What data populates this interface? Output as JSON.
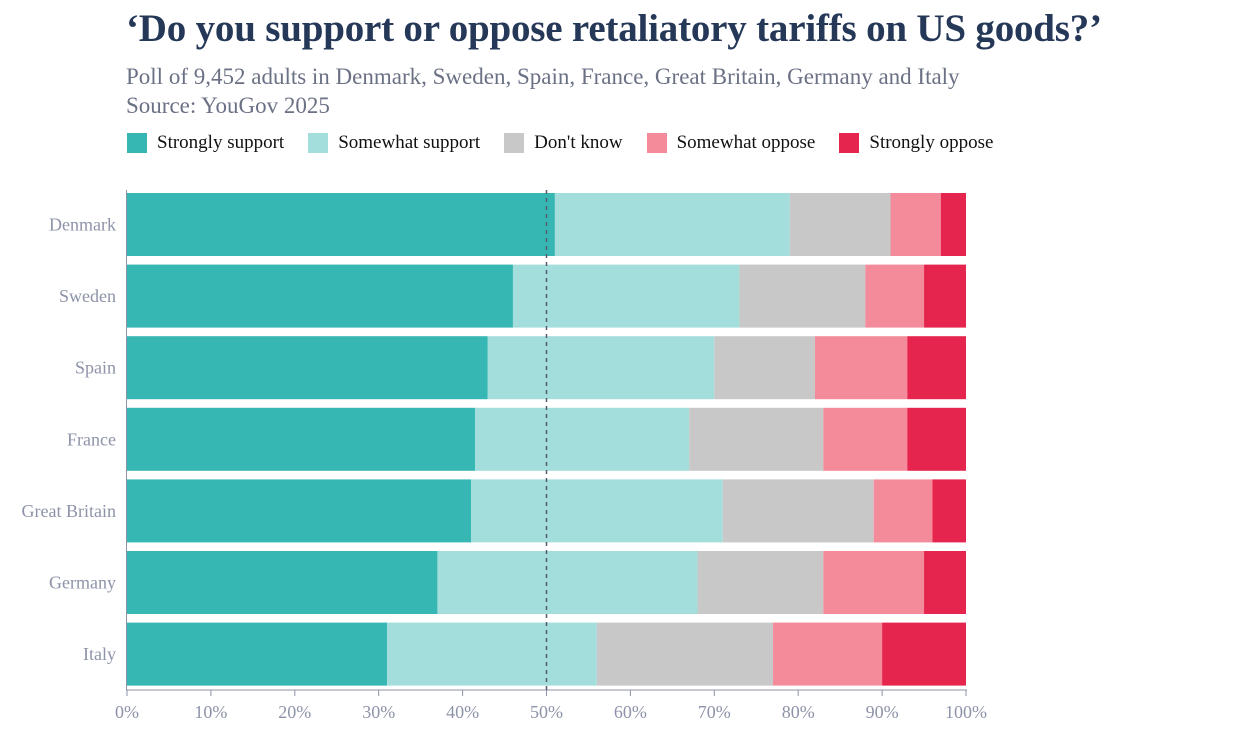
{
  "title": "‘Do you support or oppose retaliatory tariffs on US goods?’",
  "subtitle": "Poll of 9,452 adults in Denmark, Sweden, Spain, France, Great Britain, Germany and Italy",
  "source": "Source: YouGov 2025",
  "colors": {
    "title": "#253858",
    "subtitle": "#6b7185",
    "axis": "#8d93a8",
    "reference_line": "#555b6e"
  },
  "chart_data": {
    "type": "bar",
    "orientation": "horizontal",
    "stacked": true,
    "title": "‘Do you support or oppose retaliatory tariffs on US goods?’",
    "categories": [
      "Denmark",
      "Sweden",
      "Spain",
      "France",
      "Great Britain",
      "Germany",
      "Italy"
    ],
    "series": [
      {
        "name": "Strongly support",
        "color": "#36b7b4",
        "values": [
          51,
          46,
          43,
          41.5,
          41,
          37,
          31
        ]
      },
      {
        "name": "Somewhat support",
        "color": "#a3dedc",
        "values": [
          28,
          27,
          27,
          25.5,
          30,
          31,
          25
        ]
      },
      {
        "name": "Don't know",
        "color": "#c8c8c8",
        "values": [
          12,
          15,
          12,
          16,
          18,
          15,
          21
        ]
      },
      {
        "name": "Somewhat oppose",
        "color": "#f48b9b",
        "values": [
          6,
          7,
          11,
          10,
          7,
          12,
          13
        ]
      },
      {
        "name": "Strongly oppose",
        "color": "#e5254e",
        "values": [
          3,
          5,
          7,
          7,
          4,
          5,
          10
        ]
      }
    ],
    "xlim": [
      0,
      100
    ],
    "x_ticks": [
      "0%",
      "10%",
      "20%",
      "30%",
      "40%",
      "50%",
      "60%",
      "70%",
      "80%",
      "90%",
      "100%"
    ],
    "reference_line": 50,
    "grid": false,
    "legend_position": "top-left"
  }
}
